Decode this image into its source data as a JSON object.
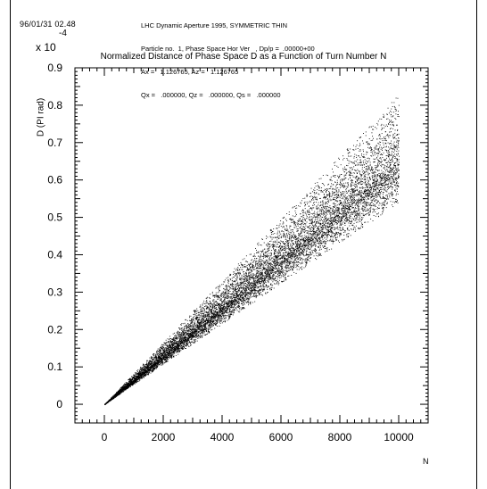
{
  "header": {
    "date": "96/01/31  02.48",
    "lines": [
      "LHC Dynamic Aperture 1995, SYMMETRIC THIN",
      "Particle no.  1, Phase Space Hor Ver   , Dp/p =  .00000+00",
      "Ax =   1.126765, Az =   1.126765",
      "Qx =   .000000, Qz =   .000000, Qs =   .000000"
    ]
  },
  "chart_data": {
    "type": "scatter",
    "title": "Normalized Distance of Phase Space D as a Function of Turn Number N",
    "xlabel": "N",
    "ylabel": "D (PI rad)",
    "y_multiplier_label": "x 10",
    "y_multiplier_exponent": "-4",
    "xlim": [
      -1000,
      11000
    ],
    "ylim": [
      -0.05,
      0.9
    ],
    "x_ticks": [
      0,
      2000,
      4000,
      6000,
      8000,
      10000
    ],
    "x_tick_labels": [
      "0",
      "2000",
      "4000",
      "6000",
      "8000",
      "10000"
    ],
    "y_ticks": [
      0,
      0.1,
      0.2,
      0.3,
      0.4,
      0.5,
      0.6,
      0.7,
      0.8,
      0.9
    ],
    "y_tick_labels": [
      "0",
      "0.1",
      "0.2",
      "0.3",
      "0.4",
      "0.5",
      "0.6",
      "0.7",
      "0.8",
      "0.9"
    ],
    "grid": false,
    "point_color": "#000000",
    "series": [
      {
        "x_range": [
          0,
          10000
        ],
        "n_points": 10000,
        "upper_envelope_at_end": 0.83,
        "central_trend_at_end": 0.65,
        "lower_envelope_at_end": 0.54,
        "value_at_start": 0
      }
    ]
  }
}
